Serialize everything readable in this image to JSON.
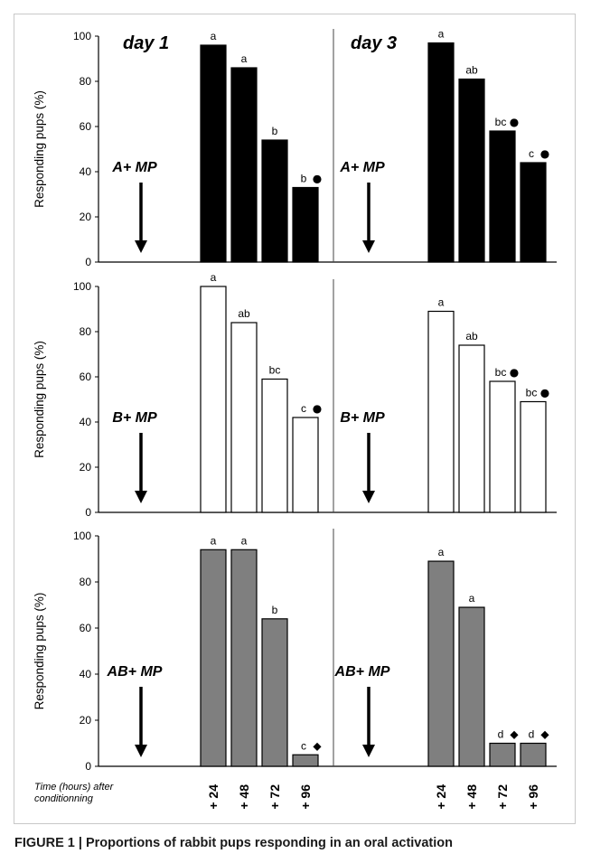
{
  "caption": "FIGURE 1 | Proportions of rabbit pups responding in an oral activation",
  "x_axis_caption": [
    "Time (hours) after",
    "conditionning"
  ],
  "colors": {
    "A+ MP": "#000000",
    "B+ MP": "#ffffff",
    "AB+ MP": "#7f7f7f"
  },
  "chart_data": [
    {
      "type": "bar",
      "panel": "A+ MP",
      "day": "day 1",
      "title": "day 1",
      "stimulus": "A+ MP",
      "ylabel": "Responding pups (%)",
      "ylim": [
        0,
        100
      ],
      "yticks": [
        0,
        20,
        40,
        60,
        80,
        100
      ],
      "categories": [
        "+ 24",
        "+ 48",
        "+ 72",
        "+ 96"
      ],
      "values": [
        96,
        86,
        54,
        33
      ],
      "fill": "black",
      "letters": [
        "a",
        "a",
        "b",
        "b"
      ],
      "symbols": [
        "",
        "",
        "",
        "●"
      ]
    },
    {
      "type": "bar",
      "panel": "A+ MP",
      "day": "day 3",
      "title": "day 3",
      "stimulus": "A+ MP",
      "ylabel": "",
      "ylim": [
        0,
        100
      ],
      "categories": [
        "+ 24",
        "+ 48",
        "+ 72",
        "+ 96"
      ],
      "values": [
        97,
        81,
        58,
        44
      ],
      "fill": "black",
      "letters": [
        "a",
        "ab",
        "bc",
        "c"
      ],
      "symbols": [
        "",
        "",
        "●",
        "●"
      ]
    },
    {
      "type": "bar",
      "panel": "B+ MP",
      "day": "day 1",
      "title": "",
      "stimulus": "B+ MP",
      "ylabel": "Responding pups (%)",
      "ylim": [
        0,
        100
      ],
      "yticks": [
        0,
        20,
        40,
        60,
        80,
        100
      ],
      "categories": [
        "+ 24",
        "+ 48",
        "+ 72",
        "+ 96"
      ],
      "values": [
        100,
        84,
        59,
        42
      ],
      "fill": "white",
      "letters": [
        "a",
        "ab",
        "bc",
        "c"
      ],
      "symbols": [
        "",
        "",
        "",
        "●"
      ]
    },
    {
      "type": "bar",
      "panel": "B+ MP",
      "day": "day 3",
      "title": "",
      "stimulus": "B+ MP",
      "ylabel": "",
      "ylim": [
        0,
        100
      ],
      "categories": [
        "+ 24",
        "+ 48",
        "+ 72",
        "+ 96"
      ],
      "values": [
        89,
        74,
        58,
        49
      ],
      "fill": "white",
      "letters": [
        "a",
        "ab",
        "bc",
        "bc"
      ],
      "symbols": [
        "",
        "",
        "●",
        "●"
      ]
    },
    {
      "type": "bar",
      "panel": "AB+ MP",
      "day": "day 1",
      "title": "",
      "stimulus": "AB+ MP",
      "ylabel": "Responding pups (%)",
      "ylim": [
        0,
        100
      ],
      "yticks": [
        0,
        20,
        40,
        60,
        80,
        100
      ],
      "categories": [
        "+ 24",
        "+ 48",
        "+ 72",
        "+ 96"
      ],
      "values": [
        94,
        94,
        64,
        5
      ],
      "fill": "gray",
      "letters": [
        "a",
        "a",
        "b",
        "c"
      ],
      "symbols": [
        "",
        "",
        "",
        "◆"
      ]
    },
    {
      "type": "bar",
      "panel": "AB+ MP",
      "day": "day 3",
      "title": "",
      "stimulus": "AB+ MP",
      "ylabel": "",
      "ylim": [
        0,
        100
      ],
      "categories": [
        "+ 24",
        "+ 48",
        "+ 72",
        "+ 96"
      ],
      "values": [
        89,
        69,
        10,
        10
      ],
      "fill": "gray",
      "letters": [
        "a",
        "a",
        "d",
        "d"
      ],
      "symbols": [
        "",
        "",
        "◆",
        "◆"
      ]
    }
  ]
}
